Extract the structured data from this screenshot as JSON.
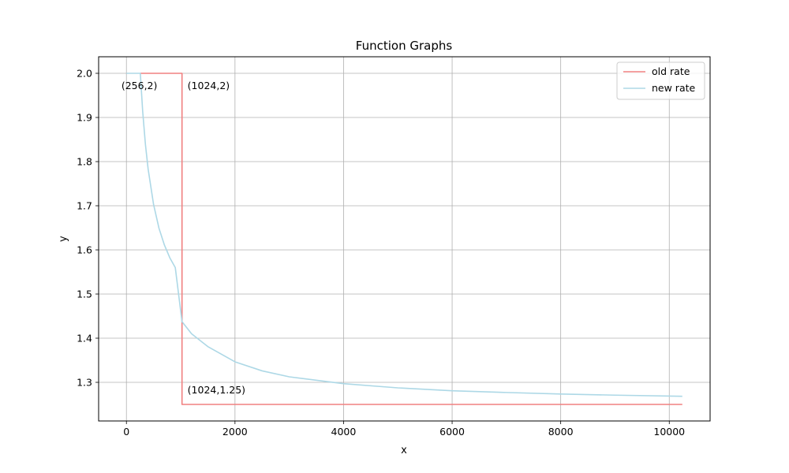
{
  "chart_data": {
    "type": "line",
    "title": "Function Graphs",
    "xlabel": "x",
    "ylabel": "y",
    "xlim": [
      -512,
      10752
    ],
    "ylim": [
      1.2125,
      2.0375
    ],
    "xticks": [
      0,
      2000,
      4000,
      6000,
      8000,
      10000
    ],
    "xtick_labels": [
      "0",
      "2000",
      "4000",
      "6000",
      "8000",
      "10000"
    ],
    "yticks": [
      1.3,
      1.4,
      1.5,
      1.6,
      1.7,
      1.8,
      1.9,
      2.0
    ],
    "ytick_labels": [
      "1.3",
      "1.4",
      "1.5",
      "1.6",
      "1.7",
      "1.8",
      "1.9",
      "2.0"
    ],
    "grid": true,
    "legend_position": "top-right",
    "series": [
      {
        "name": "old rate",
        "color": "#f08080",
        "x": [
          256,
          1024,
          1024,
          10240
        ],
        "y": [
          2.0,
          2.0,
          1.25,
          1.25
        ]
      },
      {
        "name": "new rate",
        "color": "#add8e6",
        "x": [
          0,
          256,
          300,
          350,
          400,
          500,
          600,
          700,
          800,
          900,
          1024,
          1200,
          1500,
          2000,
          2500,
          3000,
          4000,
          5000,
          6000,
          7000,
          8000,
          9000,
          10240
        ],
        "y": [
          2.0,
          2.0,
          1.913,
          1.839,
          1.783,
          1.703,
          1.649,
          1.611,
          1.582,
          1.56,
          1.4375,
          1.41,
          1.381,
          1.3465,
          1.326,
          1.3125,
          1.297,
          1.2875,
          1.281,
          1.277,
          1.2735,
          1.271,
          1.2685
        ]
      }
    ],
    "annotations": [
      {
        "text": "(256,2)",
        "x": 256,
        "y": 2.0
      },
      {
        "text": "(1024,2)",
        "x": 1024,
        "y": 2.0
      },
      {
        "text": "(1024,1.25)",
        "x": 1024,
        "y": 1.25
      }
    ]
  }
}
